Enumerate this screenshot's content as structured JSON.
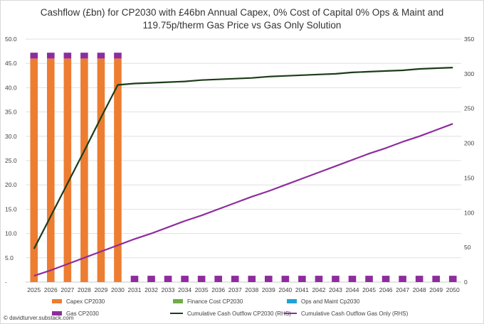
{
  "chart_data": {
    "type": "bar",
    "title_line1": "Cashflow (£bn) for CP2030 with £46bn Annual Capex, 0% Cost of Capital 0% Ops & Maint and",
    "title_line2": "119.75p/therm Gas Price vs Gas Only Solution",
    "categories": [
      "2025",
      "2026",
      "2027",
      "2028",
      "2029",
      "2030",
      "2031",
      "2032",
      "2033",
      "2034",
      "2035",
      "2036",
      "2037",
      "2038",
      "2039",
      "2040",
      "2041",
      "2042",
      "2043",
      "2044",
      "2045",
      "2046",
      "2047",
      "2048",
      "2049",
      "2050"
    ],
    "y_left": {
      "min": 0,
      "max": 50,
      "ticks": [
        "-",
        "5.0",
        "10.0",
        "15.0",
        "20.0",
        "25.0",
        "30.0",
        "35.0",
        "40.0",
        "45.0",
        "50.0"
      ]
    },
    "y_right": {
      "min": 0,
      "max": 350,
      "ticks": [
        "0",
        "50",
        "100",
        "150",
        "200",
        "250",
        "300",
        "350"
      ]
    },
    "grid": true,
    "legend_position": "bottom",
    "series": [
      {
        "name": "Capex CP2030",
        "kind": "bar",
        "axis": "left",
        "color": "#ED7D31",
        "values": [
          46,
          46,
          46,
          46,
          46,
          46,
          0,
          0,
          0,
          0,
          0,
          0,
          0,
          0,
          0,
          0,
          0,
          0,
          0,
          0,
          0,
          0,
          0,
          0,
          0,
          0
        ]
      },
      {
        "name": "Finance Cost CP2030",
        "kind": "bar",
        "axis": "left",
        "color": "#70AD47",
        "values": [
          0,
          0,
          0,
          0,
          0,
          0,
          0,
          0,
          0,
          0,
          0,
          0,
          0,
          0,
          0,
          0,
          0,
          0,
          0,
          0,
          0,
          0,
          0,
          0,
          0,
          0
        ]
      },
      {
        "name": "Ops and Maint Cp2030",
        "kind": "bar",
        "axis": "left",
        "color": "#1FA3D6",
        "values": [
          0,
          0,
          0,
          0,
          0,
          0,
          0,
          0,
          0,
          0,
          0,
          0,
          0,
          0,
          0,
          0,
          0,
          0,
          0,
          0,
          0,
          0,
          0,
          0,
          0,
          0
        ]
      },
      {
        "name": "Gas CP2030",
        "kind": "bar",
        "axis": "left",
        "color": "#8E2C9E",
        "values": [
          1.2,
          1.2,
          1.2,
          1.2,
          1.2,
          1.2,
          1.3,
          1.3,
          1.3,
          1.3,
          1.3,
          1.3,
          1.3,
          1.3,
          1.3,
          1.3,
          1.3,
          1.3,
          1.3,
          1.3,
          1.3,
          1.3,
          1.3,
          1.3,
          1.3,
          1.3
        ]
      },
      {
        "name": "Cumulative Cash Outflow CP2030 (RHS)",
        "kind": "line",
        "axis": "right",
        "color": "#1B3D17",
        "values": [
          48,
          95,
          142,
          189,
          237,
          284,
          286,
          287,
          288,
          289,
          291,
          292,
          293,
          294,
          296,
          297,
          298,
          299,
          300,
          302,
          303,
          304,
          305,
          307,
          308,
          309
        ]
      },
      {
        "name": "Cumulative Cash Outflow Gas Only (RHS)",
        "kind": "line",
        "axis": "right",
        "color": "#8E2C9E",
        "values": [
          9,
          17,
          26,
          35,
          44,
          53,
          62,
          70,
          79,
          88,
          96,
          105,
          114,
          123,
          131,
          140,
          149,
          158,
          167,
          176,
          185,
          193,
          202,
          210,
          219,
          228
        ]
      }
    ],
    "footer": "© davidturver.substack.com"
  }
}
